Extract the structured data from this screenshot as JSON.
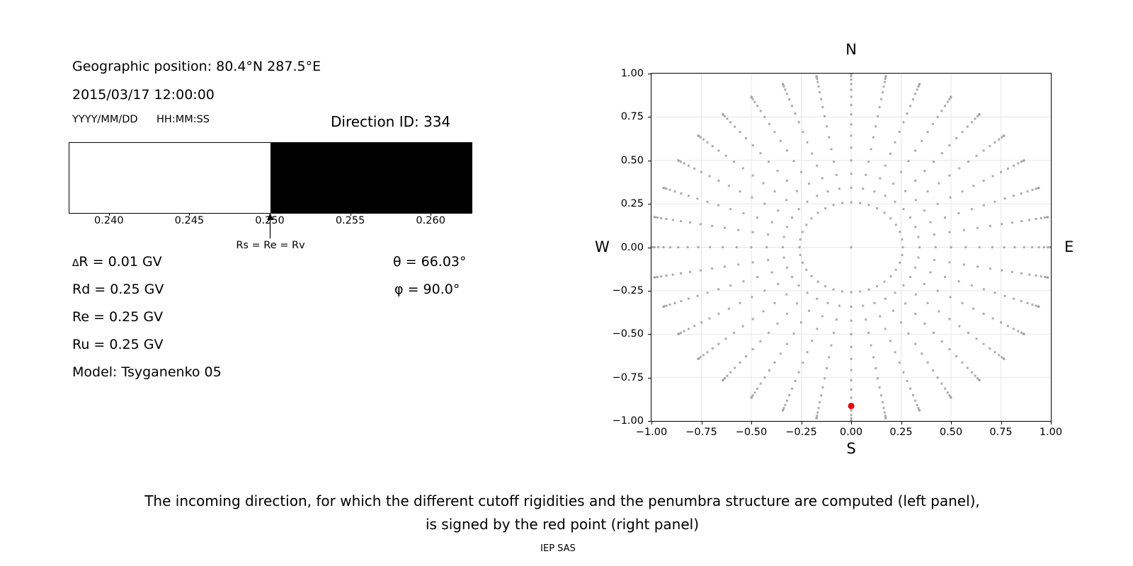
{
  "left_panel": {
    "geo_position": "Geographic position: 80.4°N 287.5°E",
    "datetime": "2015/03/17 12:00:00",
    "date_format_label": "YYYY/MM/DD",
    "time_format_label": "HH:MM:SS",
    "direction_id_label": "Direction ID: 334",
    "params_left": [
      "∆R = 0.01 GV",
      "Rd = 0.25 GV",
      "Re = 0.25 GV",
      "Ru = 0.25 GV",
      "Model: Tsyganenko 05"
    ],
    "params_right": [
      "θ = 66.03°",
      "φ = 90.0°"
    ]
  },
  "caption": {
    "line1": "The incoming direction, for which the different cutoff rigidities and the penumbra structure are computed (left panel),",
    "line2": "is signed by the red point (right panel)",
    "credit": "IEP SAS"
  },
  "colors": {
    "dot_gray": "#9e9e9e",
    "highlight_red": "#e8000b",
    "grid_line": "#e7e7e7",
    "axis_black": "#000000"
  },
  "chart_data": [
    {
      "id": "penumbra-structure",
      "type": "bar",
      "title": "",
      "xlabel": "",
      "ylabel": "",
      "xlim": [
        0.2375,
        0.2625
      ],
      "xticks": [
        0.24,
        0.245,
        0.25,
        0.255,
        0.26
      ],
      "xtick_labels": [
        "0.240",
        "0.245",
        "0.250",
        "0.255",
        "0.260"
      ],
      "segments": [
        {
          "from": 0.2375,
          "to": 0.25,
          "color": "#ffffff"
        },
        {
          "from": 0.25,
          "to": 0.2625,
          "color": "#000000"
        }
      ],
      "annotation": {
        "x": 0.25,
        "label": "Rs = Re = Rv"
      }
    },
    {
      "id": "incoming-direction-map",
      "type": "scatter",
      "title": "",
      "xlim": [
        -1,
        1
      ],
      "ylim": [
        -1,
        1
      ],
      "grid": true,
      "xticks": [
        -1,
        -0.75,
        -0.5,
        -0.25,
        0,
        0.25,
        0.5,
        0.75,
        1
      ],
      "yticks": [
        1,
        0.75,
        0.5,
        0.25,
        0,
        -0.25,
        -0.5,
        -0.75,
        -1
      ],
      "xtick_labels": [
        "−1.00",
        "−0.75",
        "−0.50",
        "−0.25",
        "0.00",
        "0.25",
        "0.50",
        "0.75",
        "1.00"
      ],
      "ytick_labels": [
        "1.00",
        "0.75",
        "0.50",
        "0.25",
        "0.00",
        "−0.25",
        "−0.50",
        "−0.75",
        "−1.00"
      ],
      "compass": {
        "top": "N",
        "bottom": "S",
        "left": "W",
        "right": "E"
      },
      "grid_points": {
        "azimuth_deg_start": 0,
        "azimuth_deg_step": 10,
        "azimuth_count": 36,
        "zenith_deg": [
          15,
          20,
          25,
          30,
          35,
          40,
          45,
          50,
          55,
          60,
          65,
          70,
          75,
          80,
          85,
          90
        ],
        "radius_rule": "sin(zenith)",
        "center_point": true,
        "marker_px": 3,
        "color": "#9e9e9e"
      },
      "highlight_point": {
        "x": 0.0,
        "y": -0.9138,
        "radius_px": 4.5,
        "color": "#e8000b"
      }
    }
  ]
}
